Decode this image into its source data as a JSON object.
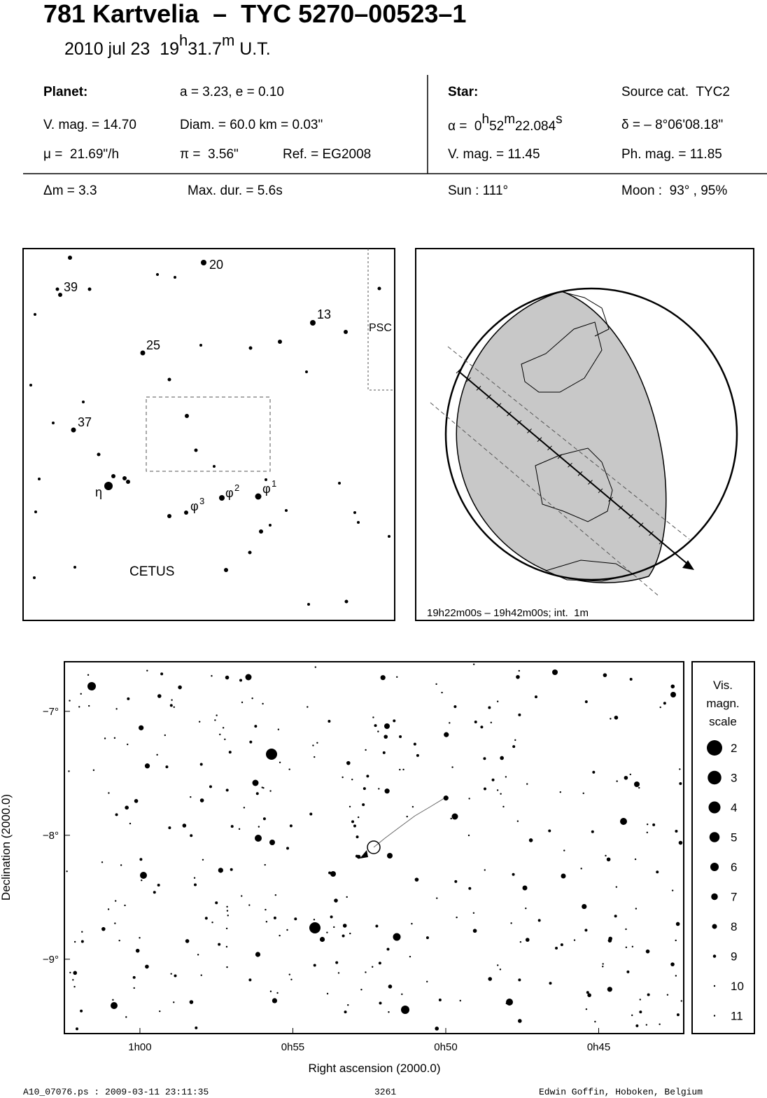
{
  "header": {
    "title": "781 Kartvelia  –  TYC 5270–00523–1",
    "date": "2010 jul 23  19",
    "date_h": "h",
    "date_min": "31.7",
    "date_m": "m",
    "date_ut": " U.T."
  },
  "planet": {
    "label": "Planet:",
    "orbit": "a = 3.23, e = 0.10",
    "vmag": "V. mag. = 14.70",
    "diam": "Diam. = 60.0 km = 0.03\"",
    "mu": "μ =  21.69\"/h",
    "pi": "π =  3.56\"",
    "ref": "Ref. = EG2008"
  },
  "star": {
    "label": "Star:",
    "source": "Source cat.  TYC2",
    "ra": "α =  0",
    "ra_h": "h",
    "ra_min": "52",
    "ra_m": "m",
    "ra_sec": "22.084",
    "ra_s": "s",
    "dec": "δ = – 8°06'08.18\"",
    "vmag": "V. mag. = 11.45",
    "phmag": "Ph. mag. = 11.85"
  },
  "event": {
    "dm": "Δm = 3.3",
    "maxdur": "Max. dur. = 5.6s",
    "sun": "Sun : 111°",
    "moon": "Moon :  93° , 95%"
  },
  "finder": {
    "labels": [
      "20",
      "39",
      "13",
      "25",
      "37",
      "η"
    ],
    "greek": [
      {
        "letter": "φ",
        "index": "3"
      },
      {
        "letter": "φ",
        "index": "2"
      },
      {
        "letter": "φ",
        "index": "1"
      }
    ],
    "constellation": "CETUS",
    "neighbor": "PSC"
  },
  "globe": {
    "caption": "19h22m00s – 19h42m00s; int.  1m"
  },
  "star_chart": {
    "x_label": "Right ascension (2000.0)",
    "y_label": "Declination (2000.0)",
    "xlim": [
      62.47,
      42.22
    ],
    "ylim": [
      -9.6,
      -6.6
    ],
    "xticks": [
      {
        "value": 60,
        "label": "1h00"
      },
      {
        "value": 55,
        "label": "0h55"
      },
      {
        "value": 50,
        "label": "0h50"
      },
      {
        "value": 45,
        "label": "0h45"
      }
    ],
    "yticks": [
      {
        "value": -7,
        "label": "−7°"
      },
      {
        "value": -8,
        "label": "−8°"
      },
      {
        "value": -9,
        "label": "−9°"
      }
    ],
    "legend_title": [
      "Vis.",
      "magn.",
      "scale"
    ],
    "legend_magnitudes": [
      2,
      3,
      4,
      5,
      6,
      7,
      8,
      9,
      10,
      11
    ]
  },
  "footer": {
    "file": "A10_07076.ps : 2009-03-11 23:11:35",
    "number": "3261",
    "author": "Edwin Goffin, Hoboken, Belgium"
  }
}
